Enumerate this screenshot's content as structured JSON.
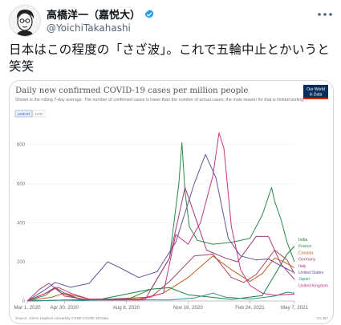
{
  "author": {
    "display_name": "高橋洋一（嘉悦大）",
    "handle": "@YoichiTakahashi"
  },
  "tweet": {
    "text": "日本はこの程度の「さざ波」。これで五輪中止とかいうと笑笑"
  },
  "icons": [
    "avatar-illustration",
    "verified-badge-icon",
    "more-options-icon"
  ],
  "colors": {
    "verified": "#1d9bf0",
    "owid_box": "#0b2e5c",
    "owid_accent": "#ce261e"
  },
  "chart_data": {
    "type": "line",
    "title": "Daily new confirmed COVID-19 cases per million people",
    "subtitle": "Shown is the rolling 7-day average. The number of confirmed cases is lower than the number of actual cases; the main reason for that is limited testing.",
    "logo_text": [
      "Our World",
      "in Data"
    ],
    "toggles": [
      {
        "label": "LINEAR",
        "active": true
      },
      {
        "label": "LOG",
        "active": false
      }
    ],
    "ylim": [
      0,
      880
    ],
    "yticks": [
      0,
      200,
      400,
      600,
      800
    ],
    "x_labels": [
      {
        "label": "Mar 1, 2020",
        "t": 0
      },
      {
        "label": "Apr 30, 2020",
        "t": 60
      },
      {
        "label": "Aug 8, 2020",
        "t": 160
      },
      {
        "label": "Nov 16, 2020",
        "t": 260
      },
      {
        "label": "Feb 24, 2021",
        "t": 360
      },
      {
        "label": "May 7, 2021",
        "t": 432
      }
    ],
    "t_max": 432,
    "source": "Source: Johns Hopkins University CSSE COVID-19 Data",
    "license": "CC BY",
    "series": [
      {
        "name": "India",
        "color": "#1a7f3e",
        "points": [
          [
            0,
            0
          ],
          [
            120,
            10
          ],
          [
            200,
            60
          ],
          [
            230,
            68
          ],
          [
            260,
            32
          ],
          [
            330,
            8
          ],
          [
            380,
            28
          ],
          [
            405,
            160
          ],
          [
            420,
            240
          ],
          [
            432,
            280
          ]
        ]
      },
      {
        "name": "France",
        "color": "#2d8a46",
        "points": [
          [
            0,
            0
          ],
          [
            30,
            30
          ],
          [
            45,
            70
          ],
          [
            60,
            40
          ],
          [
            90,
            5
          ],
          [
            160,
            5
          ],
          [
            200,
            60
          ],
          [
            230,
            220
          ],
          [
            245,
            600
          ],
          [
            250,
            810
          ],
          [
            255,
            560
          ],
          [
            262,
            380
          ],
          [
            275,
            310
          ],
          [
            300,
            290
          ],
          [
            330,
            300
          ],
          [
            360,
            320
          ],
          [
            380,
            440
          ],
          [
            395,
            580
          ],
          [
            400,
            510
          ],
          [
            410,
            420
          ],
          [
            420,
            300
          ],
          [
            432,
            200
          ]
        ]
      },
      {
        "name": "Canada",
        "color": "#c15d1f",
        "points": [
          [
            0,
            0
          ],
          [
            40,
            20
          ],
          [
            60,
            40
          ],
          [
            100,
            10
          ],
          [
            180,
            10
          ],
          [
            220,
            40
          ],
          [
            260,
            120
          ],
          [
            300,
            230
          ],
          [
            330,
            160
          ],
          [
            360,
            100
          ],
          [
            380,
            140
          ],
          [
            400,
            220
          ],
          [
            415,
            200
          ],
          [
            432,
            170
          ]
        ]
      },
      {
        "name": "Germany",
        "color": "#a0465c",
        "points": [
          [
            0,
            0
          ],
          [
            30,
            40
          ],
          [
            45,
            70
          ],
          [
            60,
            25
          ],
          [
            100,
            5
          ],
          [
            200,
            20
          ],
          [
            230,
            100
          ],
          [
            270,
            230
          ],
          [
            300,
            240
          ],
          [
            330,
            120
          ],
          [
            350,
            95
          ],
          [
            370,
            135
          ],
          [
            400,
            260
          ],
          [
            420,
            210
          ],
          [
            432,
            140
          ]
        ]
      },
      {
        "name": "Italy",
        "color": "#a33c78",
        "points": [
          [
            0,
            0
          ],
          [
            20,
            60
          ],
          [
            35,
            90
          ],
          [
            55,
            40
          ],
          [
            90,
            5
          ],
          [
            190,
            5
          ],
          [
            230,
            220
          ],
          [
            255,
            580
          ],
          [
            265,
            490
          ],
          [
            290,
            260
          ],
          [
            320,
            220
          ],
          [
            340,
            200
          ],
          [
            370,
            330
          ],
          [
            390,
            330
          ],
          [
            410,
            190
          ],
          [
            432,
            110
          ]
        ]
      },
      {
        "name": "United States",
        "color": "#6a51a3",
        "points": [
          [
            0,
            0
          ],
          [
            30,
            60
          ],
          [
            45,
            95
          ],
          [
            70,
            70
          ],
          [
            100,
            90
          ],
          [
            130,
            200
          ],
          [
            150,
            170
          ],
          [
            180,
            120
          ],
          [
            210,
            150
          ],
          [
            240,
            300
          ],
          [
            270,
            600
          ],
          [
            288,
            750
          ],
          [
            305,
            630
          ],
          [
            325,
            320
          ],
          [
            345,
            230
          ],
          [
            370,
            210
          ],
          [
            390,
            215
          ],
          [
            410,
            180
          ],
          [
            432,
            145
          ]
        ]
      },
      {
        "name": "Japan",
        "color": "#2f8f8f",
        "points": [
          [
            0,
            0
          ],
          [
            40,
            3
          ],
          [
            60,
            5
          ],
          [
            90,
            2
          ],
          [
            140,
            10
          ],
          [
            180,
            6
          ],
          [
            230,
            5
          ],
          [
            270,
            15
          ],
          [
            300,
            40
          ],
          [
            320,
            20
          ],
          [
            360,
            10
          ],
          [
            400,
            25
          ],
          [
            420,
            45
          ],
          [
            432,
            40
          ]
        ]
      },
      {
        "name": "United Kingdom",
        "color": "#c4387a",
        "points": [
          [
            0,
            0
          ],
          [
            30,
            40
          ],
          [
            50,
            70
          ],
          [
            70,
            40
          ],
          [
            100,
            10
          ],
          [
            180,
            5
          ],
          [
            220,
            40
          ],
          [
            240,
            340
          ],
          [
            260,
            290
          ],
          [
            280,
            400
          ],
          [
            300,
            640
          ],
          [
            310,
            860
          ],
          [
            318,
            780
          ],
          [
            330,
            380
          ],
          [
            345,
            160
          ],
          [
            360,
            80
          ],
          [
            380,
            40
          ],
          [
            400,
            30
          ],
          [
            432,
            35
          ]
        ]
      }
    ]
  }
}
